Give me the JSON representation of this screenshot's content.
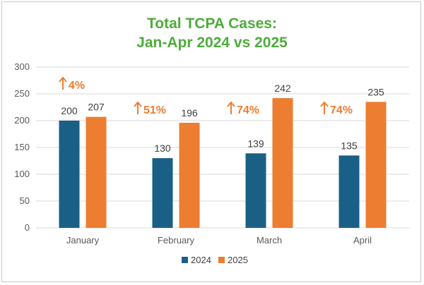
{
  "chart_data": {
    "type": "bar",
    "title_lines": [
      "Total TCPA Cases:",
      "Jan-Apr 2024 vs 2025"
    ],
    "categories": [
      "January",
      "February",
      "March",
      "April"
    ],
    "series": [
      {
        "name": "2024",
        "values": [
          200,
          130,
          139,
          135
        ]
      },
      {
        "name": "2025",
        "values": [
          207,
          196,
          242,
          235
        ]
      }
    ],
    "data_labels": [
      [
        "200",
        "130",
        "139",
        "135"
      ],
      [
        "207",
        "196",
        "242",
        "235"
      ]
    ],
    "annotations": [
      "4%",
      "51%",
      "74%",
      "74%"
    ],
    "yticks": [
      "0",
      "50",
      "100",
      "150",
      "200",
      "250",
      "300"
    ],
    "ylim": [
      0,
      300
    ],
    "grid": true,
    "legend_position": "bottom"
  },
  "colors": {
    "title": "#4eac3c",
    "series_2024": "#1a5f86",
    "series_2025": "#ed7d31",
    "annotation": "#ed7d31",
    "grid": "#d9d9d9"
  },
  "icons": {
    "annotation": "arrow-up-icon"
  }
}
